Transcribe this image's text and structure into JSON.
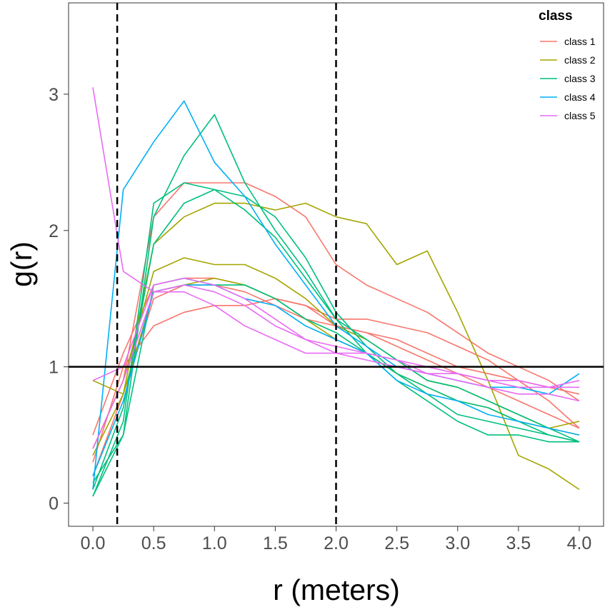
{
  "chart_data": {
    "type": "line",
    "xlabel": "r (meters)",
    "ylabel": "g(r)",
    "xlim": [
      -0.2,
      4.2
    ],
    "ylim": [
      -0.17,
      3.67
    ],
    "x_ticks": [
      "0.0",
      "0.5",
      "1.0",
      "1.5",
      "2.0",
      "2.5",
      "3.0",
      "3.5",
      "4.0"
    ],
    "y_ticks": [
      "0",
      "1",
      "2",
      "3"
    ],
    "grid": false,
    "legend": {
      "title": "class",
      "position": "top-right"
    },
    "reference_lines": {
      "horizontal_y": 1,
      "vertical_dashed_x": [
        0.2,
        2.0
      ]
    },
    "x": [
      0,
      0.25,
      0.5,
      0.75,
      1,
      1.25,
      1.5,
      1.75,
      2,
      2.25,
      2.5,
      2.75,
      3,
      3.25,
      3.5,
      3.75,
      4
    ],
    "series": [
      {
        "name": "class 1",
        "color": "#F8766D",
        "values": [
          0.4,
          0.9,
          2.1,
          2.35,
          2.35,
          2.35,
          2.25,
          2.1,
          1.75,
          1.6,
          1.5,
          1.4,
          1.25,
          1.1,
          1.0,
          0.9,
          0.75
        ]
      },
      {
        "name": "class 1",
        "color": "#F8766D",
        "values": [
          0.5,
          1.1,
          1.6,
          1.65,
          1.65,
          1.6,
          1.5,
          1.45,
          1.3,
          1.25,
          1.2,
          1.1,
          1.0,
          0.95,
          0.9,
          0.85,
          0.8
        ]
      },
      {
        "name": "class 1",
        "color": "#F8766D",
        "values": [
          0.3,
          1.0,
          1.3,
          1.4,
          1.45,
          1.45,
          1.5,
          1.45,
          1.35,
          1.35,
          1.3,
          1.25,
          1.15,
          1.05,
          0.9,
          0.75,
          0.55
        ]
      },
      {
        "name": "class 1",
        "color": "#F8766D",
        "values": [
          0.2,
          0.8,
          1.5,
          1.6,
          1.6,
          1.55,
          1.45,
          1.35,
          1.3,
          1.25,
          1.15,
          1.05,
          0.95,
          0.85,
          0.75,
          0.65,
          0.55
        ]
      },
      {
        "name": "class 2",
        "color": "#A3A500",
        "values": [
          0.9,
          0.8,
          1.9,
          2.1,
          2.2,
          2.2,
          2.15,
          2.2,
          2.1,
          2.05,
          1.75,
          1.85,
          1.4,
          0.9,
          0.35,
          0.25,
          0.1
        ]
      },
      {
        "name": "class 2",
        "color": "#A3A500",
        "values": [
          0.4,
          0.9,
          1.7,
          1.8,
          1.75,
          1.75,
          1.65,
          1.5,
          1.3,
          1.2,
          1.05,
          0.9,
          0.85,
          0.75,
          0.65,
          0.55,
          0.6
        ]
      },
      {
        "name": "class 2",
        "color": "#A3A500",
        "values": [
          0.35,
          0.8,
          1.55,
          1.6,
          1.65,
          1.6,
          1.5,
          1.35,
          1.2,
          1.1,
          0.95,
          0.85,
          0.75,
          0.7,
          0.6,
          0.55,
          0.5
        ]
      },
      {
        "name": "class 3",
        "color": "#00BF7D",
        "values": [
          0.05,
          0.6,
          2.2,
          2.35,
          2.3,
          2.25,
          2.1,
          1.8,
          1.4,
          1.15,
          0.95,
          0.85,
          0.75,
          0.7,
          0.6,
          0.5,
          0.45
        ]
      },
      {
        "name": "class 3",
        "color": "#00BF7D",
        "values": [
          0.1,
          0.7,
          1.9,
          2.2,
          2.3,
          2.15,
          1.95,
          1.65,
          1.35,
          1.1,
          0.95,
          0.8,
          0.65,
          0.6,
          0.55,
          0.5,
          0.45
        ]
      },
      {
        "name": "class 3",
        "color": "#00BF7D",
        "values": [
          0.15,
          0.5,
          1.6,
          1.65,
          1.6,
          1.6,
          1.5,
          1.35,
          1.25,
          1.1,
          0.9,
          0.75,
          0.6,
          0.5,
          0.5,
          0.45,
          0.45
        ]
      },
      {
        "name": "class 3",
        "color": "#00BF7D",
        "values": [
          0.05,
          0.5,
          2.1,
          2.55,
          2.85,
          2.35,
          2.0,
          1.7,
          1.35,
          1.2,
          1.05,
          0.9,
          0.85,
          0.75,
          0.65,
          0.55,
          0.45
        ]
      },
      {
        "name": "class 4",
        "color": "#00B0F6",
        "values": [
          0.1,
          2.3,
          2.65,
          2.95,
          2.5,
          2.25,
          1.9,
          1.6,
          1.3,
          1.15,
          1.0,
          0.95,
          0.9,
          0.85,
          0.85,
          0.8,
          0.95
        ]
      },
      {
        "name": "class 4",
        "color": "#00B0F6",
        "values": [
          0.2,
          0.75,
          1.55,
          1.6,
          1.6,
          1.5,
          1.45,
          1.3,
          1.2,
          1.1,
          0.9,
          0.8,
          0.75,
          0.65,
          0.6,
          0.55,
          0.5
        ]
      },
      {
        "name": "class 5",
        "color": "#E76BF3",
        "values": [
          3.05,
          1.7,
          1.55,
          1.55,
          1.45,
          1.3,
          1.2,
          1.1,
          1.1,
          1.05,
          1.0,
          0.95,
          0.95,
          0.9,
          0.9,
          0.85,
          0.85
        ]
      },
      {
        "name": "class 5",
        "color": "#E76BF3",
        "values": [
          0.9,
          1.0,
          1.6,
          1.65,
          1.6,
          1.5,
          1.35,
          1.2,
          1.1,
          1.1,
          1.05,
          1.0,
          0.95,
          0.9,
          0.85,
          0.85,
          0.9
        ]
      },
      {
        "name": "class 5",
        "color": "#E76BF3",
        "values": [
          0.4,
          0.9,
          1.55,
          1.6,
          1.55,
          1.45,
          1.3,
          1.2,
          1.15,
          1.1,
          1.05,
          0.95,
          0.9,
          0.85,
          0.8,
          0.8,
          0.75
        ]
      }
    ]
  },
  "legend_entries": [
    {
      "label": "class 1",
      "color": "#F8766D"
    },
    {
      "label": "class 2",
      "color": "#A3A500"
    },
    {
      "label": "class 3",
      "color": "#00BF7D"
    },
    {
      "label": "class 4",
      "color": "#00B0F6"
    },
    {
      "label": "class 5",
      "color": "#E76BF3"
    }
  ]
}
